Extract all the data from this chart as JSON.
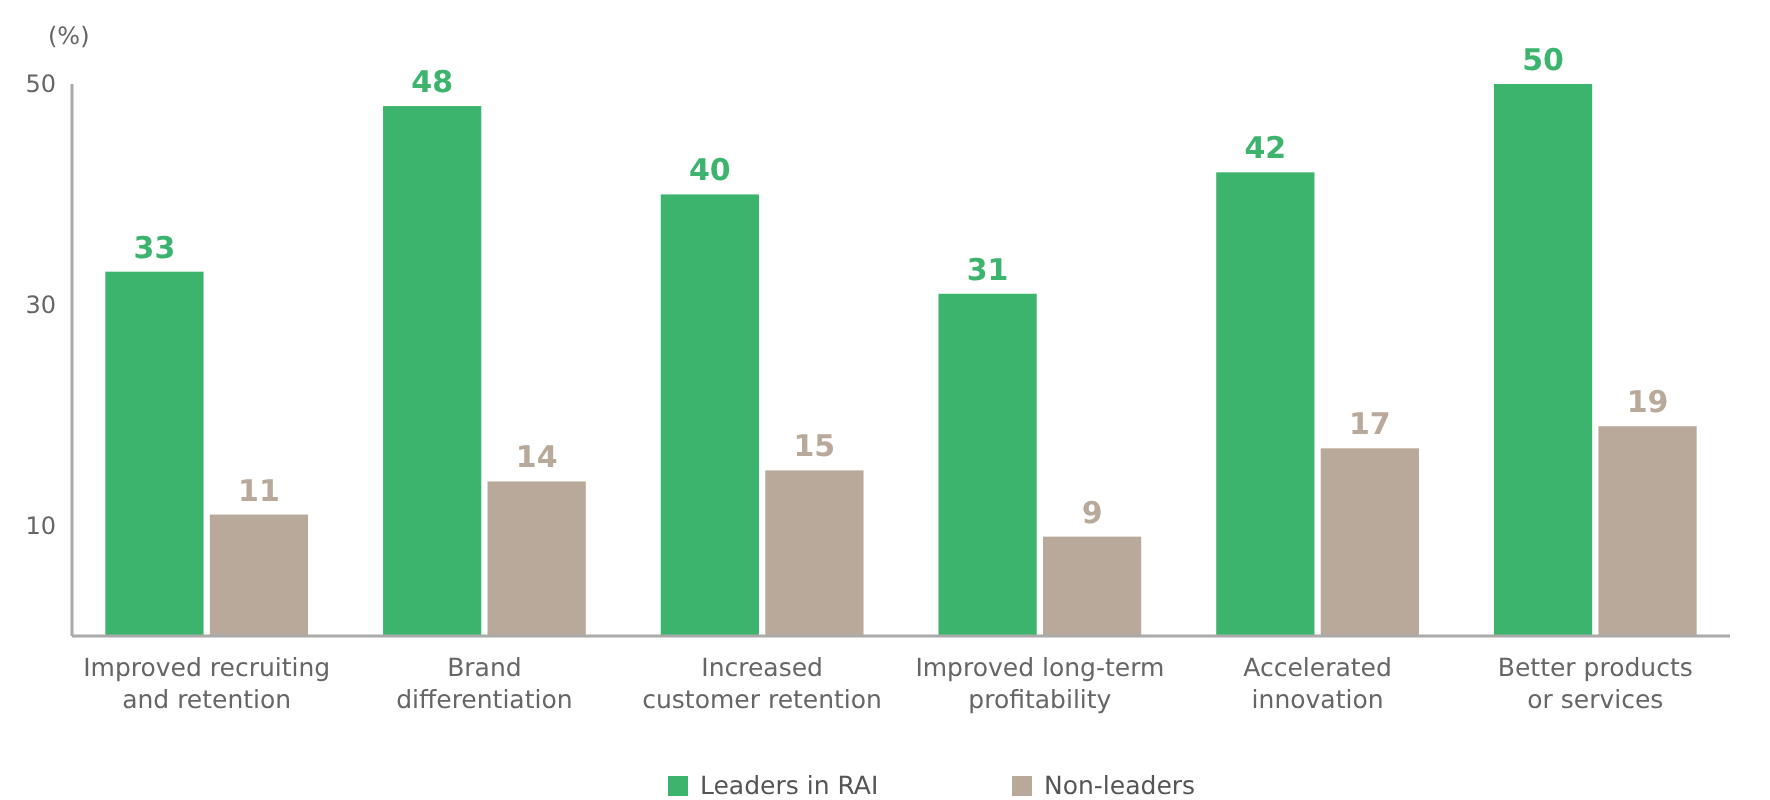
{
  "chart_data": {
    "type": "bar",
    "ylabel": "(%)",
    "categories": [
      "Improved recruiting and retention",
      "Brand differentiation",
      "Increased customer retention",
      "Improved long-term profitability",
      "Accelerated innovation",
      "Better products or services"
    ],
    "series": [
      {
        "name": "Leaders in RAI",
        "color": "#3cb46e",
        "values": [
          33,
          48,
          40,
          31,
          42,
          50
        ]
      },
      {
        "name": "Non-leaders",
        "color": "#b8a99a",
        "values": [
          11,
          14,
          15,
          9,
          17,
          19
        ]
      }
    ],
    "ylim": [
      0,
      50
    ],
    "yticks": [
      10,
      30,
      50
    ],
    "grid": false,
    "legend": "bottom",
    "data_labels": true
  }
}
